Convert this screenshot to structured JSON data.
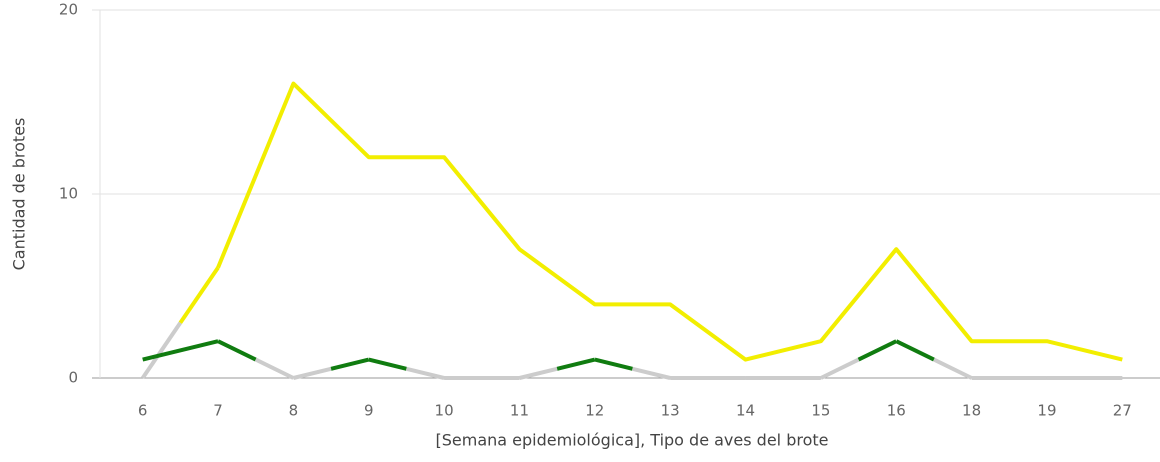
{
  "chart_data": {
    "type": "line",
    "y_label": "Cantidad de brotes",
    "x_label": "[Semana epidemiológica], Tipo de aves del brote",
    "categories": [
      "6",
      "7",
      "8",
      "9",
      "10",
      "11",
      "12",
      "13",
      "14",
      "15",
      "16",
      "18",
      "19",
      "27"
    ],
    "series": [
      {
        "color": "#f2ee00",
        "values": [
          null,
          6,
          16,
          12,
          12,
          7,
          4,
          4,
          1,
          2,
          7,
          2,
          2,
          1
        ]
      },
      {
        "color": "#107c10",
        "values": [
          1,
          2,
          null,
          1,
          null,
          null,
          1,
          null,
          null,
          null,
          2,
          null,
          null,
          null
        ]
      }
    ],
    "gap_color": "#cccccc",
    "ylim": [
      0,
      20
    ],
    "yticks": [
      0,
      10,
      20
    ],
    "grid": true
  }
}
